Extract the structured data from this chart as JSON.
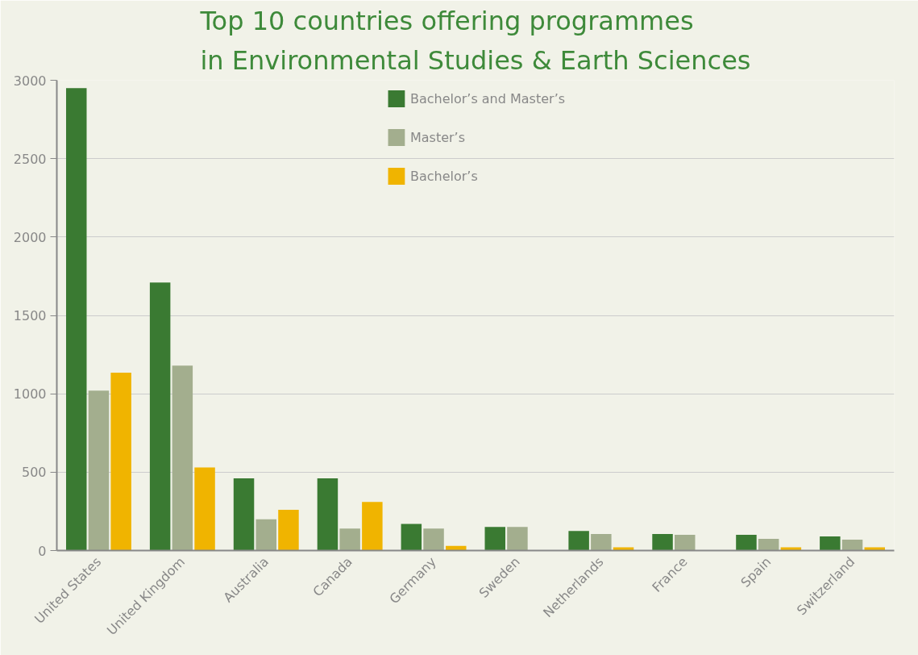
{
  "chart_data": {
    "type": "bar",
    "title": "Top 10 countries offering programmes\nin Environmental Studies & Earth Sciences",
    "categories": [
      "United States",
      "United Kingdom",
      "Australia",
      "Canada",
      "Germany",
      "Sweden",
      "Netherlands",
      "France",
      "Spain",
      "Switzerland"
    ],
    "series": [
      {
        "name": "Bachelor’s and Master’s",
        "color": "#3a7a32",
        "values": [
          2950,
          1710,
          460,
          460,
          170,
          150,
          125,
          105,
          100,
          90
        ]
      },
      {
        "name": "Master’s",
        "color": "#a3ae8e",
        "values": [
          1020,
          1180,
          200,
          140,
          140,
          150,
          105,
          100,
          75,
          70
        ]
      },
      {
        "name": "Bachelor’s",
        "color": "#f0b400",
        "values": [
          1135,
          530,
          260,
          310,
          30,
          0,
          20,
          null,
          20,
          20
        ]
      }
    ],
    "ylim": [
      0,
      3000
    ],
    "yticks": [
      0,
      500,
      1000,
      1500,
      2000,
      2500,
      3000
    ],
    "grid": "y",
    "legend": "top"
  }
}
